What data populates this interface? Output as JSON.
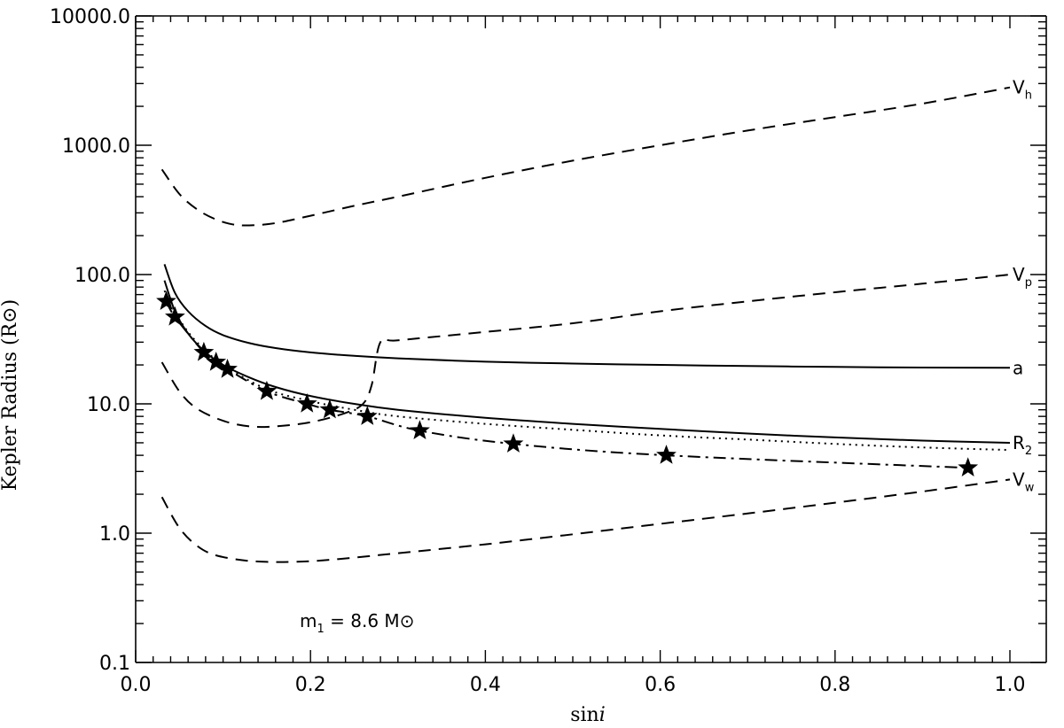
{
  "chart_data": {
    "type": "line",
    "xlabel": "sin",
    "xlabel_italic": "i",
    "ylabel": "Kepler Radius (R",
    "ylabel_sun": "⊙",
    "ylabel_close": ")",
    "xlim": [
      0.0,
      1.0
    ],
    "ylim": [
      0.1,
      10000
    ],
    "y_scale": "log",
    "x_ticks": [
      "0.0",
      "0.2",
      "0.4",
      "0.6",
      "0.8",
      "1.0"
    ],
    "y_ticks": [
      "0.1",
      "1.0",
      "10.0",
      "100.0",
      "1000.0",
      "10000.0"
    ],
    "annotation": {
      "m": "m",
      "sub": "1",
      "text": " = 8.6 M",
      "sun": "⊙"
    },
    "series": [
      {
        "label_main": "V",
        "label_sub": "h",
        "style": "dashed",
        "x": [
          0.03,
          0.05,
          0.07,
          0.09,
          0.11,
          0.13,
          0.16,
          0.2,
          0.25,
          0.3,
          0.4,
          0.5,
          0.6,
          0.7,
          0.8,
          0.9,
          1.0
        ],
        "y": [
          650,
          420,
          320,
          270,
          245,
          240,
          250,
          285,
          340,
          400,
          560,
          760,
          1000,
          1300,
          1650,
          2100,
          2800
        ]
      },
      {
        "label_main": "V",
        "label_sub": "p",
        "style": "dashed",
        "x": [
          0.03,
          0.05,
          0.07,
          0.1,
          0.13,
          0.16,
          0.2,
          0.24,
          0.26,
          0.27,
          0.28,
          0.3,
          0.4,
          0.5,
          0.6,
          0.7,
          0.8,
          0.9,
          1.0
        ],
        "y": [
          21,
          12.5,
          9.2,
          7.4,
          6.7,
          6.7,
          7.2,
          8.5,
          10.0,
          14.0,
          30.0,
          31.0,
          36.0,
          42.0,
          52.0,
          62.0,
          73.0,
          85.0,
          100.0
        ]
      },
      {
        "label_main": "a",
        "label_sub": "",
        "style": "solid",
        "x": [
          0.033,
          0.045,
          0.06,
          0.08,
          0.1,
          0.13,
          0.16,
          0.2,
          0.25,
          0.3,
          0.4,
          0.5,
          0.6,
          0.7,
          0.8,
          0.9,
          1.0
        ],
        "y": [
          120,
          72,
          52,
          40,
          34,
          29.5,
          27,
          25,
          23.5,
          22.5,
          21.2,
          20.5,
          20,
          19.6,
          19.3,
          19.1,
          19
        ]
      },
      {
        "label_main": "R",
        "label_sub": "2",
        "style": "solid",
        "x": [
          0.033,
          0.045,
          0.06,
          0.08,
          0.1,
          0.13,
          0.16,
          0.2,
          0.25,
          0.3,
          0.4,
          0.5,
          0.6,
          0.7,
          0.8,
          0.9,
          1.0
        ],
        "y": [
          90,
          52,
          35,
          25,
          20,
          16,
          13.5,
          11.5,
          10,
          9,
          7.8,
          7,
          6.4,
          5.9,
          5.5,
          5.2,
          5.0
        ]
      },
      {
        "label_main": "",
        "label_sub": "",
        "style": "dotted",
        "x": [
          0.033,
          0.05,
          0.07,
          0.1,
          0.15,
          0.2,
          0.25,
          0.3,
          0.4,
          0.5,
          0.6,
          0.7,
          0.8,
          0.9,
          1.0
        ],
        "y": [
          75,
          45,
          30,
          20,
          13,
          10.5,
          9,
          8,
          7,
          6.3,
          5.7,
          5.3,
          4.9,
          4.6,
          4.4
        ]
      },
      {
        "label_main": "",
        "label_sub": "",
        "style": "dashdot",
        "x": [
          0.035,
          0.045,
          0.078,
          0.092,
          0.105,
          0.15,
          0.196,
          0.222,
          0.265,
          0.325,
          0.432,
          0.607,
          0.952
        ],
        "y": [
          62,
          47,
          25,
          21,
          18.5,
          12.5,
          10,
          9,
          8,
          6.2,
          4.9,
          4.0,
          3.2
        ]
      },
      {
        "label_main": "V",
        "label_sub": "w",
        "style": "dashed",
        "x": [
          0.03,
          0.05,
          0.07,
          0.09,
          0.12,
          0.15,
          0.18,
          0.22,
          0.3,
          0.4,
          0.5,
          0.6,
          0.7,
          0.8,
          0.9,
          1.0
        ],
        "y": [
          1.9,
          1.1,
          0.8,
          0.68,
          0.62,
          0.6,
          0.6,
          0.62,
          0.7,
          0.82,
          0.98,
          1.18,
          1.42,
          1.72,
          2.1,
          2.6
        ]
      }
    ],
    "stars": {
      "x": [
        0.035,
        0.045,
        0.078,
        0.092,
        0.105,
        0.15,
        0.196,
        0.222,
        0.265,
        0.325,
        0.432,
        0.607,
        0.952
      ],
      "y": [
        62,
        47,
        25,
        21,
        18.5,
        12.5,
        10,
        9,
        8,
        6.2,
        4.9,
        4.0,
        3.2
      ]
    }
  }
}
